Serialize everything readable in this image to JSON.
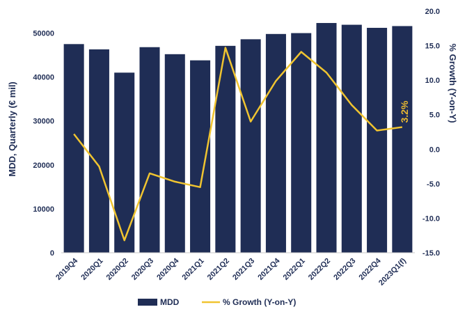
{
  "chart_data": {
    "type": "bar",
    "categories": [
      "2019Q4",
      "2020Q1",
      "2020Q2",
      "2020Q3",
      "2020Q4",
      "2021Q1",
      "2021Q2",
      "2021Q3",
      "2021Q4",
      "2022Q1",
      "2022Q2",
      "2022Q3",
      "2022Q4",
      "2023Q1(f)"
    ],
    "series": [
      {
        "name": "MDD",
        "type": "bar",
        "axis": "left",
        "color": "#1f2d55",
        "values": [
          47500,
          46300,
          41000,
          46800,
          45200,
          43800,
          47100,
          48600,
          49800,
          50000,
          52300,
          51900,
          51200,
          51600
        ]
      },
      {
        "name": "% Growth (Y-on-Y)",
        "type": "line",
        "axis": "right",
        "color": "#f0c430",
        "values": [
          2.2,
          -2.5,
          -13.2,
          -3.5,
          -4.7,
          -5.5,
          14.7,
          4.0,
          9.9,
          14.1,
          11.1,
          6.4,
          2.7,
          3.2
        ]
      }
    ],
    "ylabel": "MDD, Quarterly (€ mil)",
    "y2label": "% Growth (Y-on-Y)",
    "ylim": [
      0,
      55000
    ],
    "y2lim": [
      -15,
      20
    ],
    "yticks": [
      "0",
      "10000",
      "20000",
      "30000",
      "40000",
      "50000"
    ],
    "y2ticks": [
      "-15.0",
      "-10.0",
      "-5.0",
      "0.0",
      "5.0",
      "10.0",
      "15.0",
      "20.0"
    ],
    "annotation": "3.2%",
    "legend": [
      "MDD",
      "% Growth (Y-on-Y)"
    ],
    "legend_position": "bottom",
    "grid": false
  }
}
